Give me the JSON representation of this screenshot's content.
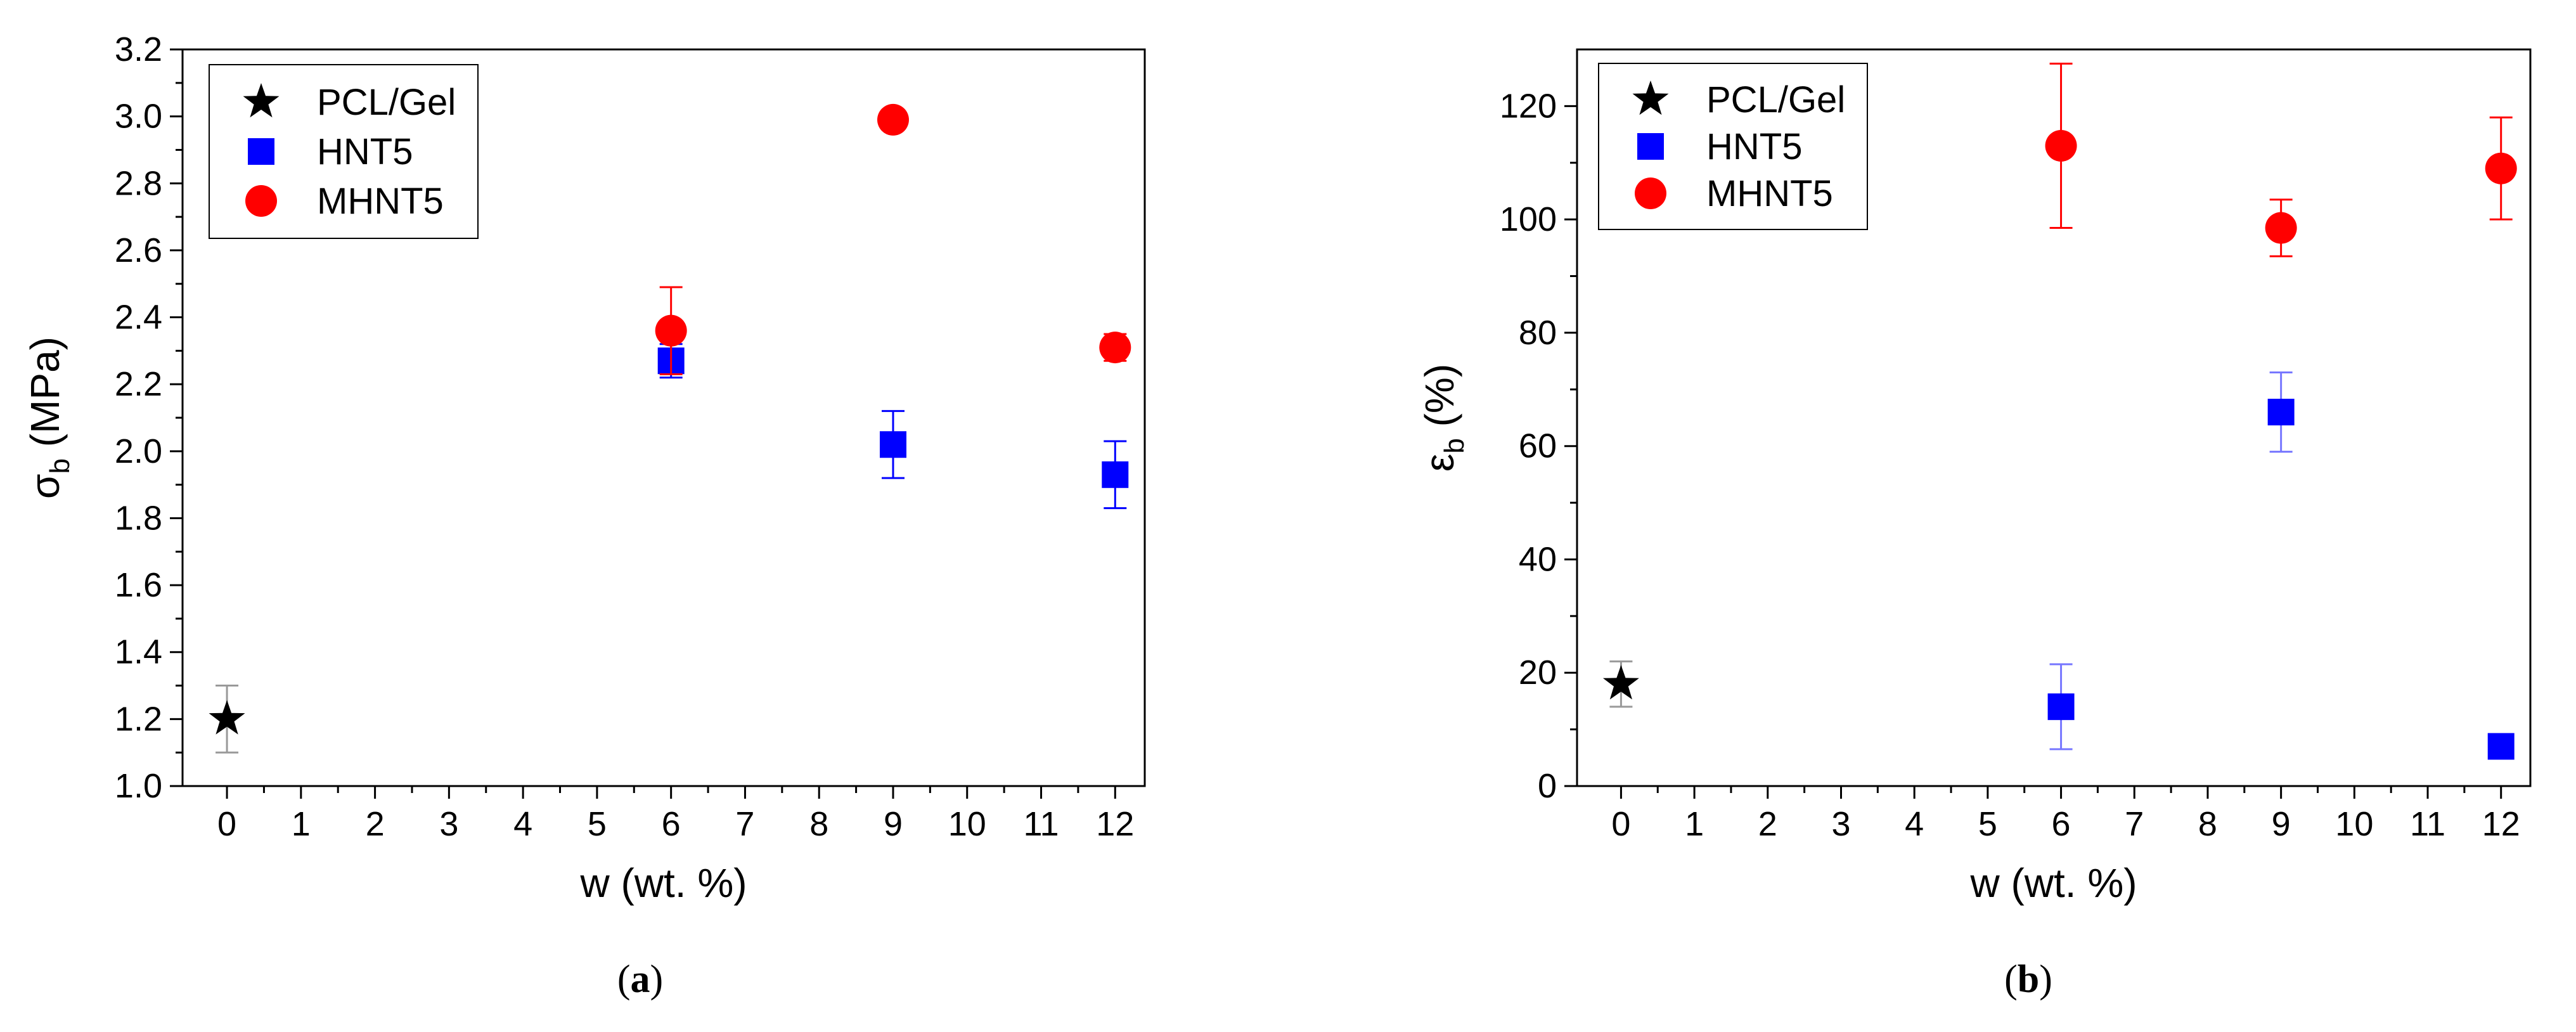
{
  "chart_data": [
    {
      "type": "scatter",
      "caption_letter": "a",
      "xlabel": "w (wt. %)",
      "ylabel_symbol": "σ",
      "ylabel_sub": "b",
      "ylabel_unit": " (MPa)",
      "xlim": [
        -0.6,
        12.4
      ],
      "ylim": [
        1.0,
        3.2
      ],
      "xticks": [
        0,
        1,
        2,
        3,
        4,
        5,
        6,
        7,
        8,
        9,
        10,
        11,
        12
      ],
      "yticks": [
        "1.0",
        "1.2",
        "1.4",
        "1.6",
        "1.8",
        "2.0",
        "2.2",
        "2.4",
        "2.6",
        "2.8",
        "3.0",
        "3.2"
      ],
      "legend_position": "top-left",
      "series": [
        {
          "name": "PCL/Gel",
          "marker": "star",
          "color": "#000000",
          "error_color": "#999999",
          "points": [
            {
              "x": 0,
              "y": 1.2,
              "err": 0.1
            }
          ]
        },
        {
          "name": "HNT5",
          "marker": "square",
          "color": "#0000ff",
          "error_color": "#0000ff",
          "points": [
            {
              "x": 6,
              "y": 2.27,
              "err": 0.05
            },
            {
              "x": 9,
              "y": 2.02,
              "err": 0.1
            },
            {
              "x": 12,
              "y": 1.93,
              "err": 0.1
            }
          ]
        },
        {
          "name": "MHNT5",
          "marker": "circle",
          "color": "#ff0000",
          "error_color": "#ff0000",
          "points": [
            {
              "x": 6,
              "y": 2.36,
              "err": 0.13
            },
            {
              "x": 9,
              "y": 2.99,
              "err": 0
            },
            {
              "x": 12,
              "y": 2.31,
              "err": 0.04
            }
          ]
        }
      ]
    },
    {
      "type": "scatter",
      "caption_letter": "b",
      "xlabel": "w (wt. %)",
      "ylabel_symbol": "ε",
      "ylabel_sub": "b",
      "ylabel_unit": " (%)",
      "xlim": [
        -0.6,
        12.4
      ],
      "ylim": [
        0,
        130
      ],
      "xticks": [
        0,
        1,
        2,
        3,
        4,
        5,
        6,
        7,
        8,
        9,
        10,
        11,
        12
      ],
      "yticks": [
        "0",
        "20",
        "40",
        "60",
        "80",
        "100",
        "120"
      ],
      "legend_position": "top-left",
      "series": [
        {
          "name": "PCL/Gel",
          "marker": "star",
          "color": "#000000",
          "error_color": "#999999",
          "points": [
            {
              "x": 0,
              "y": 18,
              "err": 4
            }
          ]
        },
        {
          "name": "HNT5",
          "marker": "square",
          "color": "#0000ff",
          "error_color": "#7777ff",
          "points": [
            {
              "x": 6,
              "y": 14,
              "err": 7.5
            },
            {
              "x": 9,
              "y": 66,
              "err": 7
            },
            {
              "x": 12,
              "y": 7,
              "err": 0
            }
          ]
        },
        {
          "name": "MHNT5",
          "marker": "circle",
          "color": "#ff0000",
          "error_color": "#ff0000",
          "points": [
            {
              "x": 6,
              "y": 113,
              "err": 14.5
            },
            {
              "x": 9,
              "y": 98.5,
              "err": 5
            },
            {
              "x": 12,
              "y": 109,
              "err": 9
            }
          ]
        }
      ]
    }
  ]
}
